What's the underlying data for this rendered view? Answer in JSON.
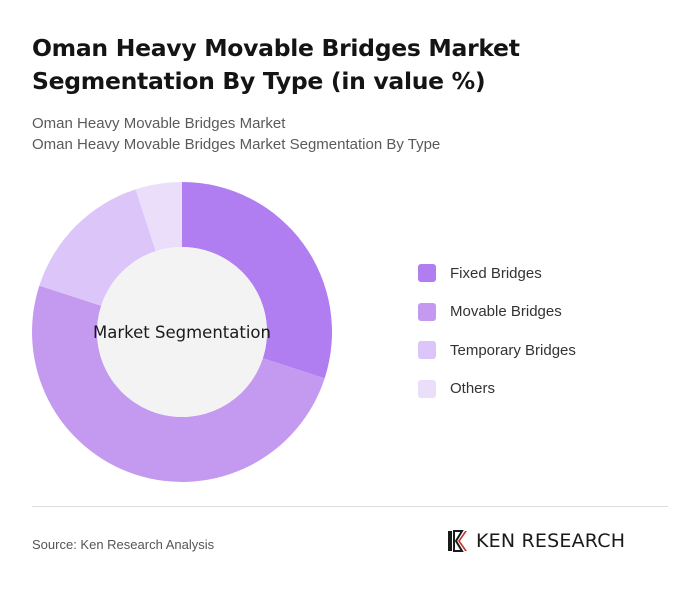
{
  "header": {
    "title": "Oman Heavy Movable Bridges Market Segmentation By Type (in value %)",
    "subtitle_line1": "Oman Heavy Movable Bridges Market",
    "subtitle_line2": "Oman Heavy Movable Bridges Market Segmentation By Type"
  },
  "chart_data": {
    "type": "pie",
    "variant": "donut",
    "center_label": "Market Segmentation",
    "categories": [
      "Fixed Bridges",
      "Movable Bridges",
      "Temporary Bridges",
      "Others"
    ],
    "values": [
      30,
      50,
      15,
      5
    ],
    "colors": [
      "#b07ef0",
      "#c49af1",
      "#dcc5f8",
      "#ebdefb"
    ],
    "legend_position": "right"
  },
  "footer": {
    "source": "Source: Ken Research Analysis",
    "logo_text": "KEN RESEARCH"
  }
}
